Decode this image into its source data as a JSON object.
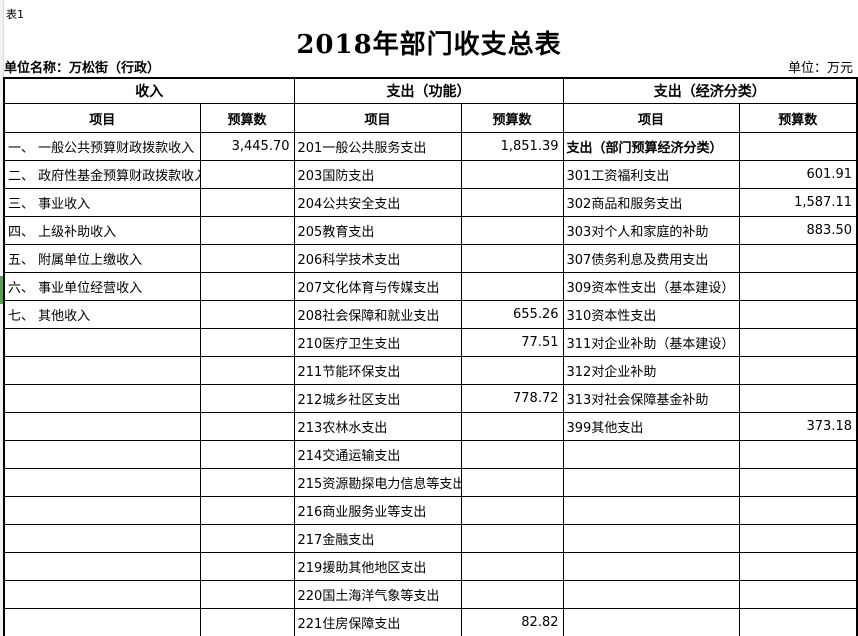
{
  "page": {
    "sheet_label": "表1",
    "title": "2018年部门收支总表",
    "unit_name": "单位名称：万松街（行政）",
    "unit_label": "单位：万元"
  },
  "colors": {
    "green_marker": "#55a14e",
    "border": "#000000",
    "background": "#ffffff"
  },
  "table": {
    "groups": [
      {
        "label": "收入"
      },
      {
        "label": "支出（功能）"
      },
      {
        "label": "支出（经济分类）"
      }
    ],
    "column_headers": {
      "item": "项目",
      "budget": "预算数"
    },
    "rows": [
      {
        "income": "一、 一般公共预算财政拨款收入",
        "income_budget": "3,445.70",
        "func": "201一般公共服务支出",
        "func_budget": "1,851.39",
        "econ": "支出（部门预算经济分类）",
        "econ_budget": "",
        "econ_bold": true
      },
      {
        "income": "二、 政府性基金预算财政拨款收入",
        "income_budget": "",
        "func": "203国防支出",
        "func_budget": "",
        "econ": "301工资福利支出",
        "econ_budget": "601.91",
        "econ_bold": false
      },
      {
        "income": "三、 事业收入",
        "income_budget": "",
        "func": "204公共安全支出",
        "func_budget": "",
        "econ": "302商品和服务支出",
        "econ_budget": "1,587.11",
        "econ_bold": false
      },
      {
        "income": "四、 上级补助收入",
        "income_budget": "",
        "func": "205教育支出",
        "func_budget": "",
        "econ": "303对个人和家庭的补助",
        "econ_budget": "883.50",
        "econ_bold": false
      },
      {
        "income": "五、 附属单位上缴收入",
        "income_budget": "",
        "func": "206科学技术支出",
        "func_budget": "",
        "econ": "307债务利息及费用支出",
        "econ_budget": "",
        "econ_bold": false
      },
      {
        "income": "六、 事业单位经营收入",
        "income_budget": "",
        "func": "207文化体育与传媒支出",
        "func_budget": "",
        "econ": "309资本性支出（基本建设）",
        "econ_budget": "",
        "econ_bold": false
      },
      {
        "income": "七、 其他收入",
        "income_budget": "",
        "func": "208社会保障和就业支出",
        "func_budget": "655.26",
        "econ": "310资本性支出",
        "econ_budget": "",
        "econ_bold": false
      },
      {
        "income": "",
        "income_budget": "",
        "func": "210医疗卫生支出",
        "func_budget": "77.51",
        "econ": "311对企业补助（基本建设）",
        "econ_budget": "",
        "econ_bold": false
      },
      {
        "income": "",
        "income_budget": "",
        "func": "211节能环保支出",
        "func_budget": "",
        "econ": "312对企业补助",
        "econ_budget": "",
        "econ_bold": false
      },
      {
        "income": "",
        "income_budget": "",
        "func": "212城乡社区支出",
        "func_budget": "778.72",
        "econ": "313对社会保障基金补助",
        "econ_budget": "",
        "econ_bold": false
      },
      {
        "income": "",
        "income_budget": "",
        "func": "213农林水支出",
        "func_budget": "",
        "econ": "399其他支出",
        "econ_budget": "373.18",
        "econ_bold": false
      },
      {
        "income": "",
        "income_budget": "",
        "func": "214交通运输支出",
        "func_budget": "",
        "econ": "",
        "econ_budget": "",
        "econ_bold": false
      },
      {
        "income": "",
        "income_budget": "",
        "func": "215资源勘探电力信息等支出",
        "func_budget": "",
        "econ": "",
        "econ_budget": "",
        "econ_bold": false
      },
      {
        "income": "",
        "income_budget": "",
        "func": "216商业服务业等支出",
        "func_budget": "",
        "econ": "",
        "econ_budget": "",
        "econ_bold": false
      },
      {
        "income": "",
        "income_budget": "",
        "func": "217金融支出",
        "func_budget": "",
        "econ": "",
        "econ_budget": "",
        "econ_bold": false
      },
      {
        "income": "",
        "income_budget": "",
        "func": "219援助其他地区支出",
        "func_budget": "",
        "econ": "",
        "econ_budget": "",
        "econ_bold": false
      },
      {
        "income": "",
        "income_budget": "",
        "func": "220国土海洋气象等支出",
        "func_budget": "",
        "econ": "",
        "econ_budget": "",
        "econ_bold": false
      },
      {
        "income": "",
        "income_budget": "",
        "func": "221住房保障支出",
        "func_budget": "82.82",
        "econ": "",
        "econ_budget": "",
        "econ_bold": false
      }
    ]
  }
}
